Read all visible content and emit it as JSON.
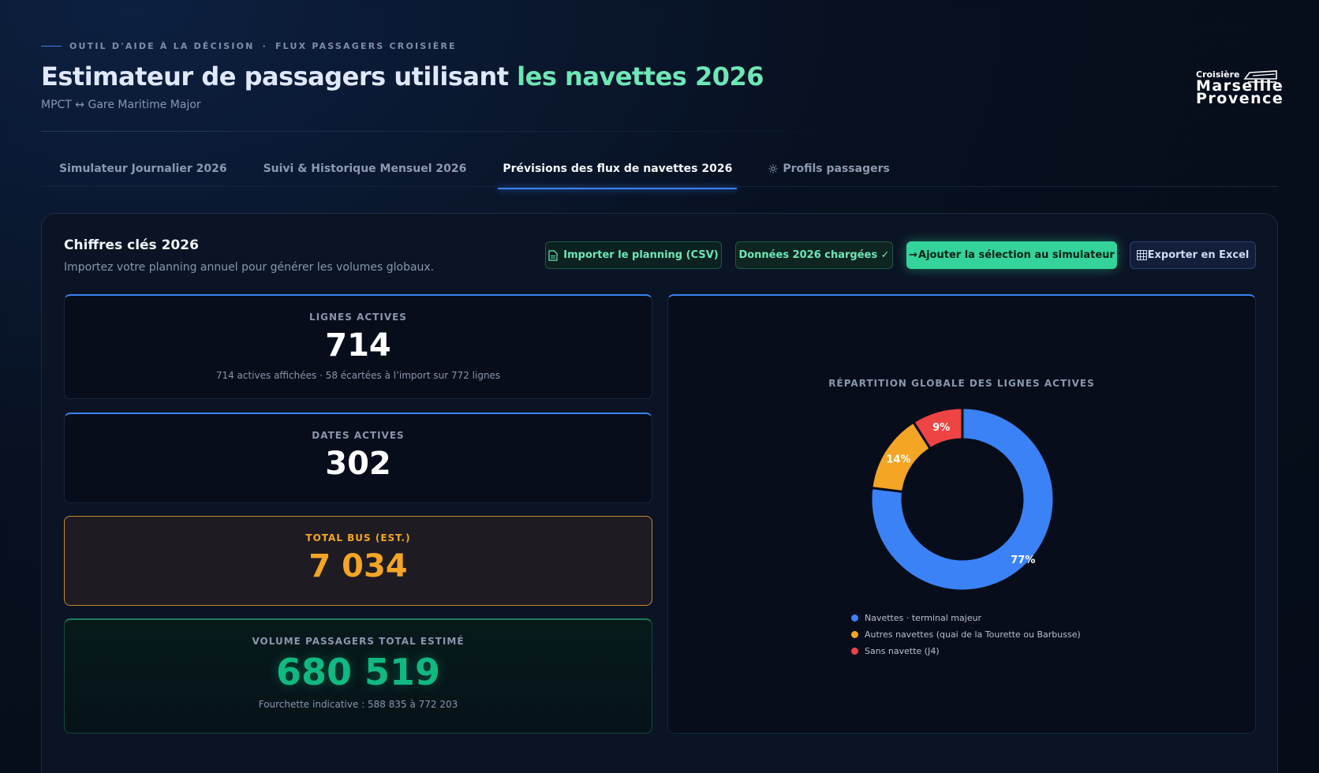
{
  "header": {
    "eyebrow_left": "OUTIL D'AIDE À LA DÉCISION",
    "eyebrow_sep": "·",
    "eyebrow_right": "FLUX PASSAGERS CROISIÈRE",
    "title_part1": "Estimateur de passagers utilisant ",
    "title_part2": "les navettes 2026",
    "subtitle": "MPCT ↔ Gare Maritime Major",
    "logo_small": "Croisière",
    "logo_line1": "Marseille",
    "logo_line2": "Provence"
  },
  "tabs": [
    {
      "label": "Simulateur Journalier 2026",
      "active": false
    },
    {
      "label": "Suivi & Historique Mensuel 2026",
      "active": false
    },
    {
      "label": "Prévisions des flux de navettes 2026",
      "active": true
    },
    {
      "label": "Profils passagers",
      "active": false,
      "icon": "sun-icon"
    }
  ],
  "panel": {
    "title": "Chiffres clés 2026",
    "subtitle": "Importez votre planning annuel pour générer les volumes globaux.",
    "buttons": {
      "import": "Importer le planning (CSV)",
      "loaded": "Données 2026 chargées ✓",
      "add": "Ajouter la sélection au simulateur",
      "export": "Exporter en Excel"
    }
  },
  "kpis": {
    "lines": {
      "label": "LIGNES ACTIVES",
      "value": "714",
      "note": "714 actives affichées · 58 écartées à l’import sur 772 lignes"
    },
    "dates": {
      "label": "DATES ACTIVES",
      "value": "302"
    },
    "bus": {
      "label": "TOTAL BUS (EST.)",
      "value": "7 034"
    },
    "pax": {
      "label": "VOLUME PASSAGERS TOTAL ESTIMÉ",
      "value": "680 519",
      "note": "Fourchette indicative : 588 835 à 772 203"
    }
  },
  "colors": {
    "blue": "#3b82f6",
    "orange": "#f5a524",
    "red": "#ef4444",
    "green": "#10b981"
  },
  "chart_data": {
    "type": "pie",
    "title": "RÉPARTITION GLOBALE DES LIGNES ACTIVES",
    "categories": [
      "Navettes · terminal majeur",
      "Autres navettes (quai de la Tourette ou Barbusse)",
      "Sans navette (J4)"
    ],
    "values": [
      77,
      14,
      9
    ],
    "labels": [
      "77%",
      "14%",
      "9%"
    ],
    "colors": [
      "#3b82f6",
      "#f5a524",
      "#ef4444"
    ],
    "donut": true,
    "legend": "bottom"
  }
}
